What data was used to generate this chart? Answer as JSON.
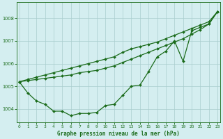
{
  "hours": [
    0,
    1,
    2,
    3,
    4,
    5,
    6,
    7,
    8,
    9,
    10,
    11,
    12,
    13,
    14,
    15,
    16,
    17,
    18,
    19,
    20,
    21,
    22,
    23
  ],
  "series_actual": [
    1005.2,
    1004.7,
    1004.35,
    1004.2,
    1003.9,
    1003.9,
    1003.7,
    1003.8,
    1003.8,
    1003.85,
    1004.15,
    1004.2,
    1004.6,
    1005.0,
    1005.05,
    1005.65,
    1006.3,
    1006.55,
    1007.0,
    1006.1,
    1007.45,
    1007.6,
    1007.75,
    1008.3
  ],
  "series_upper": [
    1005.2,
    1005.3,
    1005.4,
    1005.5,
    1005.6,
    1005.7,
    1005.8,
    1005.9,
    1006.0,
    1006.1,
    1006.2,
    1006.3,
    1006.5,
    1006.65,
    1006.75,
    1006.85,
    1006.95,
    1007.1,
    1007.25,
    1007.4,
    1007.55,
    1007.7,
    1007.85,
    1008.3
  ],
  "series_mid": [
    1005.2,
    1005.25,
    1005.3,
    1005.35,
    1005.4,
    1005.45,
    1005.5,
    1005.6,
    1005.65,
    1005.7,
    1005.8,
    1005.9,
    1006.05,
    1006.2,
    1006.35,
    1006.5,
    1006.65,
    1006.8,
    1006.95,
    1007.1,
    1007.3,
    1007.5,
    1007.75,
    1008.3
  ],
  "line_color": "#1a6b1a",
  "bg_color": "#d4eef0",
  "grid_color": "#aacece",
  "title": "Graphe pression niveau de la mer (hPa)",
  "ylim": [
    1003.4,
    1008.7
  ],
  "yticks": [
    1004,
    1005,
    1006,
    1007,
    1008
  ],
  "xlim": [
    -0.3,
    23.3
  ],
  "xticks": [
    0,
    1,
    2,
    3,
    4,
    5,
    6,
    7,
    8,
    9,
    10,
    11,
    12,
    13,
    14,
    15,
    16,
    17,
    18,
    19,
    20,
    21,
    22,
    23
  ]
}
